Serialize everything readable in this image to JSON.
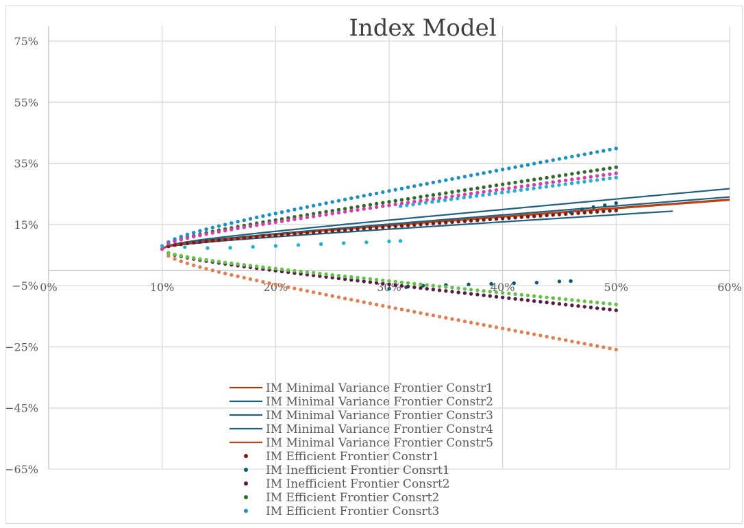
{
  "chart_data": {
    "type": "scatter",
    "title": "Index Model",
    "xlabel": "",
    "ylabel": "",
    "xlim": [
      0,
      0.6
    ],
    "ylim": [
      -0.65,
      0.8
    ],
    "x_ticks": [
      0,
      0.1,
      0.2,
      0.3,
      0.4,
      0.5,
      0.6
    ],
    "x_tick_labels": [
      "0%",
      "10%",
      "20%",
      "30%",
      "40%",
      "50%",
      "60%"
    ],
    "y_ticks": [
      0.75,
      0.55,
      0.35,
      0.15,
      -0.05,
      -0.25,
      -0.45,
      -0.65
    ],
    "y_tick_labels": [
      "75%",
      "55%",
      "35%",
      "15%",
      "−5%",
      "−25%",
      "−45%",
      "−65%"
    ],
    "grid": true,
    "legend_position": "bottom-center",
    "curve_model": "frontier vertex at (0.10, 0.07); return = 0.07 ± slope × sqrt(sd² − 0.01)",
    "series": [
      {
        "name": "IM Minimal Variance Frontier Constr1",
        "kind": "line",
        "color": "#9e3f12",
        "slope": 0.2745,
        "sd_range": [
          0.1,
          0.6
        ]
      },
      {
        "name": "IM Minimal Variance Frontier Constr2",
        "kind": "line",
        "color": "#1e6081",
        "slope": 0.3334,
        "sd_range": [
          0.1,
          0.6
        ]
      },
      {
        "name": "IM Minimal Variance Frontier Constr3",
        "kind": "line",
        "color": "#1e6081",
        "slope": 0.2876,
        "sd_range": [
          0.1,
          0.6
        ]
      },
      {
        "name": "IM Minimal Variance Frontier Constr4",
        "kind": "line",
        "color": "#1e6081",
        "slope": 0.2289,
        "sd_range": [
          0.1,
          0.55
        ]
      },
      {
        "name": "IM Minimal Variance Frontier Constr5",
        "kind": "line",
        "color": "#c0461a",
        "slope": 0.2699,
        "sd_range": [
          0.1,
          0.6
        ]
      },
      {
        "name": "IM Efficient Frontier Constr1",
        "kind": "dots",
        "color": "#7b1a14",
        "slope": 0.2573,
        "side": 1,
        "sd_range": [
          0.1,
          0.5
        ]
      },
      {
        "name": "IM Inefficient Frontier Consrt1",
        "kind": "dots",
        "color": "#0d5975",
        "points": [
          [
            0.3,
            -0.06
          ],
          [
            0.315,
            -0.055
          ],
          [
            0.33,
            -0.05
          ],
          [
            0.35,
            -0.048
          ],
          [
            0.37,
            -0.046
          ],
          [
            0.39,
            -0.044
          ],
          [
            0.41,
            -0.042
          ],
          [
            0.43,
            -0.04
          ],
          [
            0.45,
            -0.036
          ],
          [
            0.46,
            -0.035
          ]
        ]
      },
      {
        "name": "IM Inefficient Frontier Consrt2",
        "kind": "dots",
        "color": "#5a1a4a",
        "slope": 0.4092,
        "side": -1,
        "sd_range": [
          0.1,
          0.5
        ]
      },
      {
        "name": "IM Efficient Frontier Consrt2",
        "kind": "dots",
        "color": "#2e6b2a",
        "slope": 0.5457,
        "side": 1,
        "sd_range": [
          0.1,
          0.5
        ]
      },
      {
        "name": "IM Efficient Frontier Consrt3",
        "kind": "dots",
        "color": "#1a90c2",
        "slope": 0.6712,
        "side": 1,
        "sd_range": [
          0.1,
          0.5
        ]
      },
      {
        "kind": "dots",
        "color": "#e08050",
        "slope": 0.6712,
        "side": -1,
        "sd_range": [
          0.1,
          0.5
        ]
      },
      {
        "kind": "dots",
        "color": "#66c244",
        "slope": 0.3704,
        "side": -1,
        "sd_range": [
          0.1,
          0.5
        ]
      },
      {
        "kind": "dots",
        "color": "#22b0d4",
        "slope": 0.4772,
        "side": 1,
        "sd_range": [
          0.31,
          0.5
        ]
      },
      {
        "kind": "dots",
        "color": "#d43fb0",
        "slope": 0.5052,
        "side": 1,
        "sd_range": [
          0.1,
          0.5
        ]
      },
      {
        "kind": "dots",
        "color": "#22b0d4",
        "points": [
          [
            0.1,
            0.08
          ],
          [
            0.12,
            0.076
          ],
          [
            0.14,
            0.073
          ],
          [
            0.16,
            0.074
          ],
          [
            0.18,
            0.077
          ],
          [
            0.2,
            0.08
          ],
          [
            0.22,
            0.083
          ],
          [
            0.24,
            0.086
          ],
          [
            0.26,
            0.089
          ],
          [
            0.28,
            0.092
          ],
          [
            0.3,
            0.095
          ],
          [
            0.31,
            0.096
          ]
        ]
      },
      {
        "kind": "dots",
        "color": "#0d5975",
        "points": [
          [
            0.46,
            0.19
          ],
          [
            0.47,
            0.2
          ],
          [
            0.48,
            0.207
          ],
          [
            0.49,
            0.213
          ],
          [
            0.5,
            0.22
          ]
        ]
      }
    ]
  }
}
